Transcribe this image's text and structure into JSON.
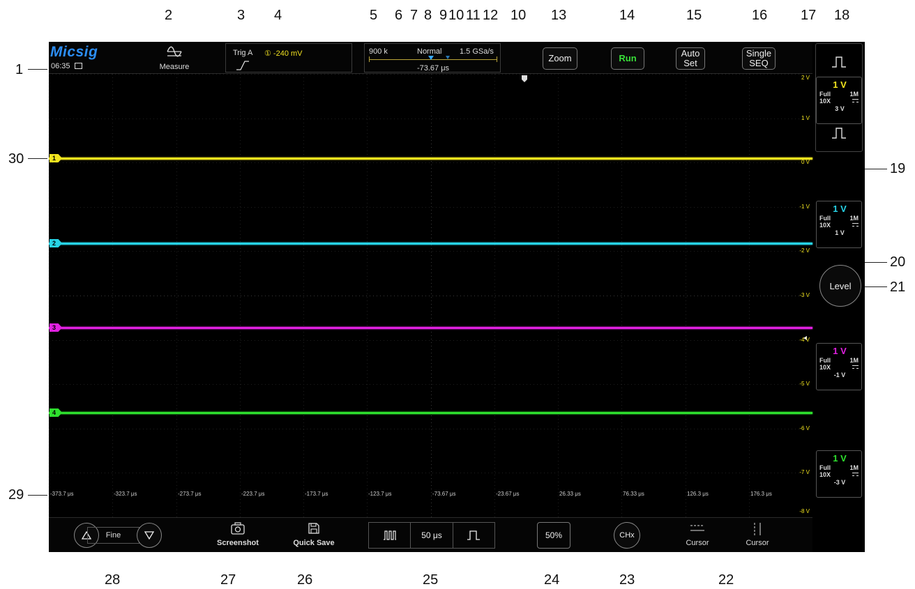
{
  "callouts": {
    "c1": "1",
    "c2": "2",
    "c3": "3",
    "c4": "4",
    "c5": "5",
    "c6": "6",
    "c7": "7",
    "c8": "8",
    "c9": "9",
    "c10a": "10",
    "c11": "11",
    "c12": "12",
    "c10b": "10",
    "c13": "13",
    "c14": "14",
    "c15": "15",
    "c16": "16",
    "c17": "17",
    "c18": "18",
    "c19": "19",
    "c20": "20",
    "c21": "21",
    "c22": "22",
    "c23": "23",
    "c24": "24",
    "c25": "25",
    "c26": "26",
    "c27": "27",
    "c28": "28",
    "c29": "29",
    "c30": "30"
  },
  "header": {
    "brand": "Micsig",
    "time": "06:35",
    "measure_label": "Measure",
    "trigger_label": "Trig  A",
    "trigger_level": "① -240 mV",
    "memory_depth": "900 k",
    "trigger_mode": "Normal",
    "sample_rate": "1.5 GSa/s",
    "time_offset": "-73.67 μs",
    "zoom_label": "Zoom",
    "run_label": "Run",
    "autoset_line1": "Auto",
    "autoset_line2": "Set",
    "single_line1": "Single",
    "single_line2": "SEQ"
  },
  "channels": [
    {
      "id": "1",
      "color": "#f2e41e",
      "scale": "1 V",
      "bandwidth": "Full",
      "impedance": "1M",
      "probe": "10X",
      "offset": "3 V"
    },
    {
      "id": "2",
      "color": "#27d3e6",
      "scale": "1 V",
      "bandwidth": "Full",
      "impedance": "1M",
      "probe": "10X",
      "offset": "1 V"
    },
    {
      "id": "3",
      "color": "#e020e0",
      "scale": "1 V",
      "bandwidth": "Full",
      "impedance": "1M",
      "probe": "10X",
      "offset": "-1 V"
    },
    {
      "id": "4",
      "color": "#2ee02e",
      "scale": "1 V",
      "bandwidth": "Full",
      "impedance": "1M",
      "probe": "10X",
      "offset": "-3 V"
    }
  ],
  "level_button": "Level",
  "volt_labels": [
    "2 V",
    "1 V",
    "0 V",
    "-1 V",
    "-2 V",
    "-3 V",
    "-4 V",
    "-5 V",
    "-6 V",
    "-7 V",
    "-8 V"
  ],
  "time_labels": [
    "-373.7 μs",
    "-323.7 μs",
    "-273.7 μs",
    "-223.7 μs",
    "-173.7 μs",
    "-123.7 μs",
    "-73.67 μs",
    "-23.67 μs",
    "26.33 μs",
    "76.33 μs",
    "126.3 μs",
    "176.3 μs"
  ],
  "bottom": {
    "fine_label": "Fine",
    "screenshot_label": "Screenshot",
    "quicksave_label": "Quick Save",
    "timebase": "50 μs",
    "fifty_pct": "50%",
    "chx_label": "CHx",
    "cursor_h_label": "Cursor",
    "cursor_v_label": "Cursor"
  }
}
